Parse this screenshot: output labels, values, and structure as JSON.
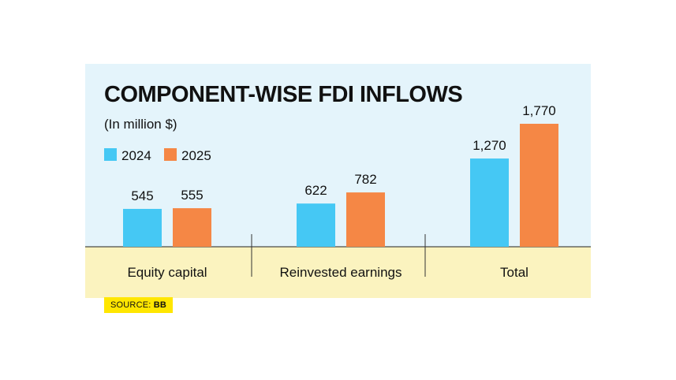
{
  "colors": {
    "panel_top": "#e4f4fb",
    "panel_bottom": "#fbf3bf",
    "series_2024": "#45c8f4",
    "series_2025": "#f58745",
    "source_bg": "#ffe600"
  },
  "source": {
    "prefix": "SOURCE: ",
    "name": "BB"
  },
  "chart_data": {
    "type": "bar",
    "title": "COMPONENT-WISE FDI INFLOWS",
    "subtitle": "(In million $)",
    "categories": [
      "Equity capital",
      "Reinvested earnings",
      "Total"
    ],
    "series": [
      {
        "name": "2024",
        "values": [
          545,
          622,
          1270
        ],
        "labels": [
          "545",
          "622",
          "1,270"
        ]
      },
      {
        "name": "2025",
        "values": [
          555,
          782,
          1770
        ],
        "labels": [
          "555",
          "782",
          "1,770"
        ]
      }
    ],
    "legend_position": "top-left",
    "grid": false,
    "ylim": [
      0,
      1770
    ]
  }
}
